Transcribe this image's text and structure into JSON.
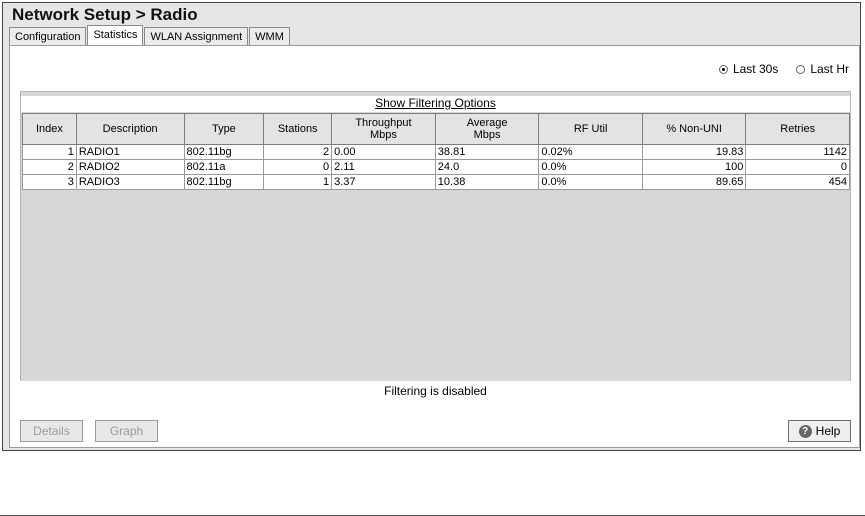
{
  "title": "Network Setup > Radio",
  "tabs": [
    {
      "label": "Configuration",
      "active": false
    },
    {
      "label": "Statistics",
      "active": true
    },
    {
      "label": "WLAN Assignment",
      "active": false
    },
    {
      "label": "WMM",
      "active": false
    }
  ],
  "period": {
    "options": [
      {
        "label": "Last 30s",
        "selected": true
      },
      {
        "label": "Last Hr",
        "selected": false
      }
    ]
  },
  "filter": {
    "link_label": "Show Filtering Options",
    "status": "Filtering is disabled"
  },
  "table": {
    "headers": [
      "Index",
      "Description",
      "Type",
      "Stations",
      "Throughput\nMbps",
      "Average\nMbps",
      "RF Util",
      "% Non-UNI",
      "Retries"
    ],
    "rows": [
      [
        "1",
        "RADIO1",
        "802.11bg",
        "2",
        "0.00",
        "38.81",
        "0.02%",
        "19.83",
        "1142"
      ],
      [
        "2",
        "RADIO2",
        "802.11a",
        "0",
        "2.11",
        "24.0",
        "0.0%",
        "100",
        "0"
      ],
      [
        "3",
        "RADIO3",
        "802.11bg",
        "1",
        "3.37",
        "10.38",
        "0.0%",
        "89.65",
        "454"
      ]
    ]
  },
  "buttons": {
    "details": "Details",
    "graph": "Graph",
    "help": "Help"
  },
  "icons": {
    "help": "help-icon"
  }
}
